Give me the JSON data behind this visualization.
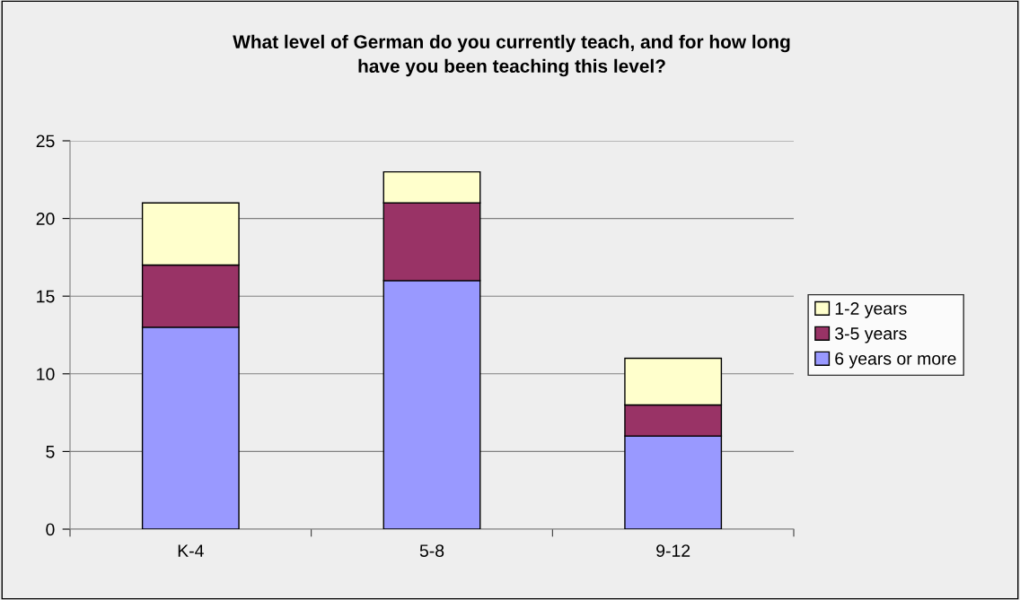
{
  "chart_data": {
    "type": "bar",
    "title": "What level of German do you currently teach, and for how long\nhave you been teaching this level?",
    "categories": [
      "K-4",
      "5-8",
      "9-12"
    ],
    "stacked": true,
    "series": [
      {
        "name": "6 years or more",
        "color": "#9999ff",
        "values": [
          13,
          16,
          6
        ]
      },
      {
        "name": "3-5 years",
        "color": "#993366",
        "values": [
          4,
          5,
          2
        ]
      },
      {
        "name": "1-2 years",
        "color": "#ffffcc",
        "values": [
          4,
          2,
          3
        ]
      }
    ],
    "ylim": [
      0,
      25
    ],
    "yticks": [
      0,
      5,
      10,
      15,
      20,
      25
    ],
    "grid": "y",
    "legend": "right"
  }
}
